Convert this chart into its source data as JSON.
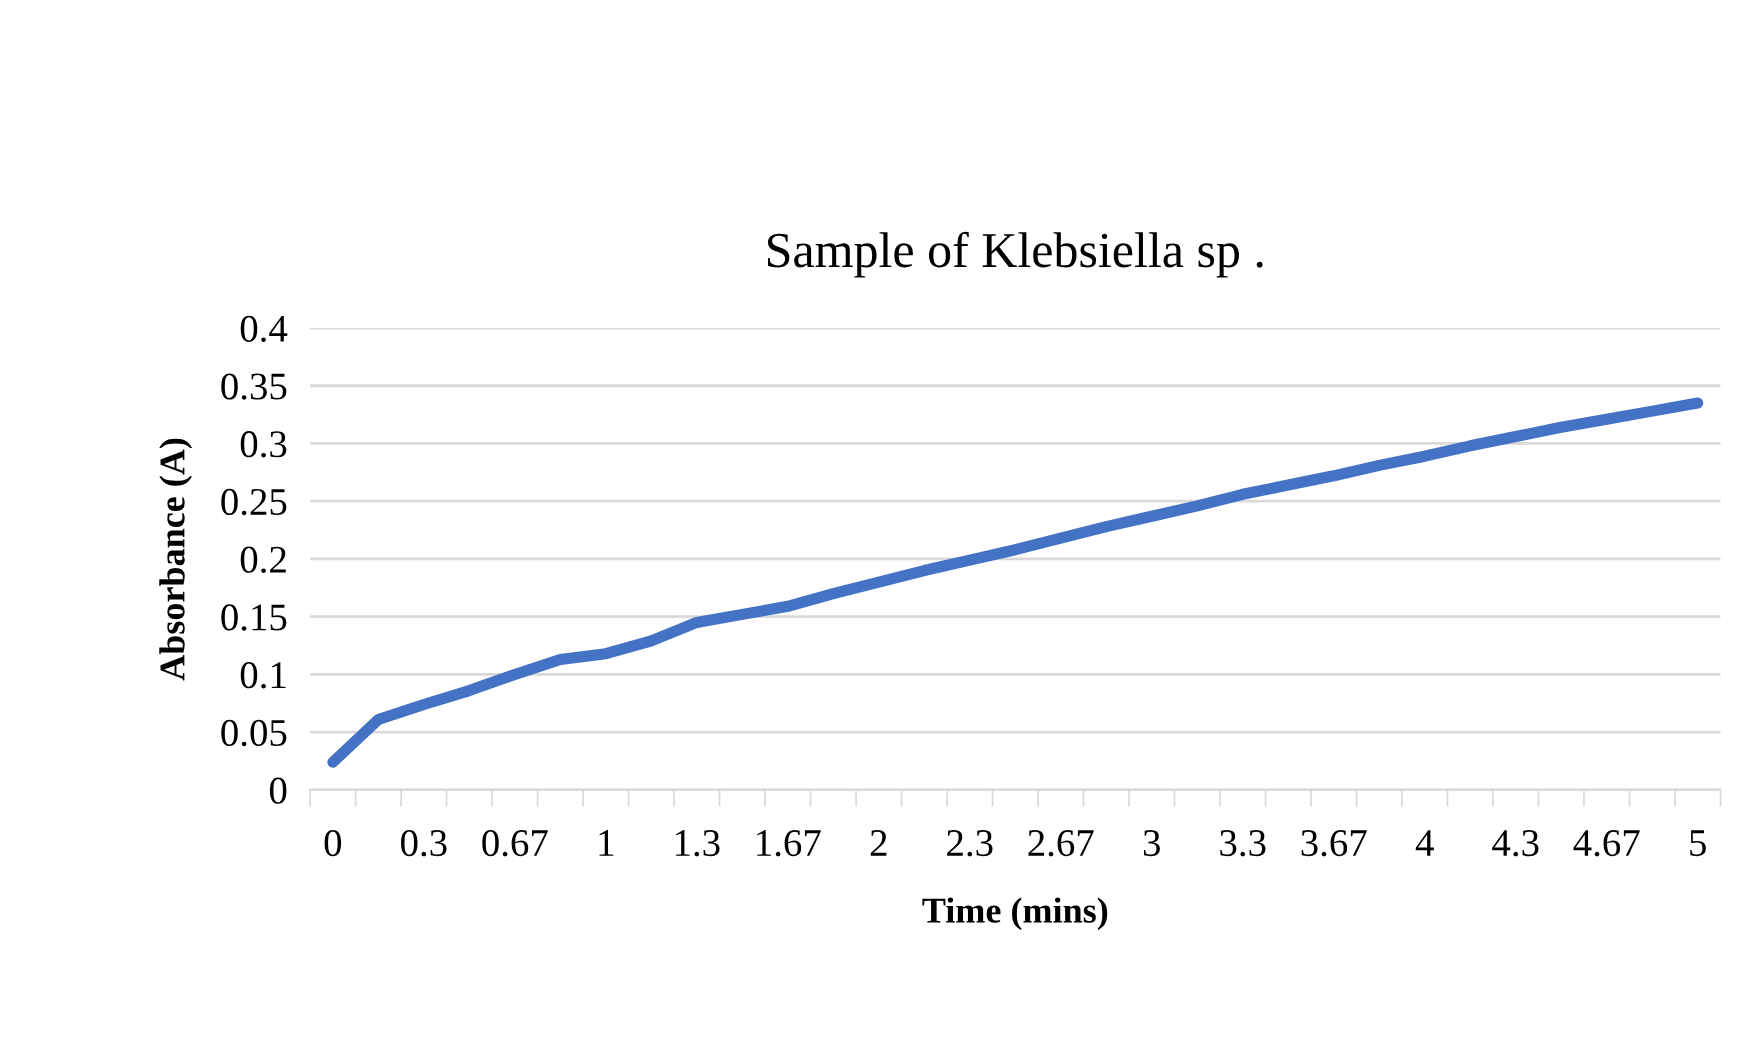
{
  "chart_data": {
    "type": "line",
    "title": "Sample of Klebsiella sp .",
    "xlabel": "Time (mins)",
    "ylabel": "Absorbance (A)",
    "categories": [
      "0",
      null,
      "0.3",
      null,
      "0.67",
      null,
      "1",
      null,
      "1.3",
      null,
      "1.67",
      null,
      "2",
      null,
      "2.3",
      null,
      "2.67",
      null,
      "3",
      null,
      "3.3",
      null,
      "3.67",
      null,
      "4",
      null,
      "4.3",
      null,
      "4.67",
      null,
      "5"
    ],
    "series": [
      {
        "color": "#4472c4",
        "values": [
          0.024,
          0.061,
          0.074,
          0.086,
          0.1,
          0.113,
          0.118,
          0.129,
          0.145,
          0.152,
          0.159,
          0.17,
          0.18,
          0.19,
          0.199,
          0.208,
          0.218,
          0.228,
          0.237,
          0.246,
          0.256,
          0.264,
          0.272,
          0.281,
          0.289,
          0.298,
          0.306,
          0.314,
          0.321,
          0.328,
          0.335
        ]
      }
    ],
    "ylim": [
      0,
      0.4
    ],
    "yticks": [
      0,
      0.05,
      0.1,
      0.15,
      0.2,
      0.25,
      0.3,
      0.35,
      0.4
    ],
    "grid": "y",
    "marker": "none",
    "line_style": "solid"
  }
}
